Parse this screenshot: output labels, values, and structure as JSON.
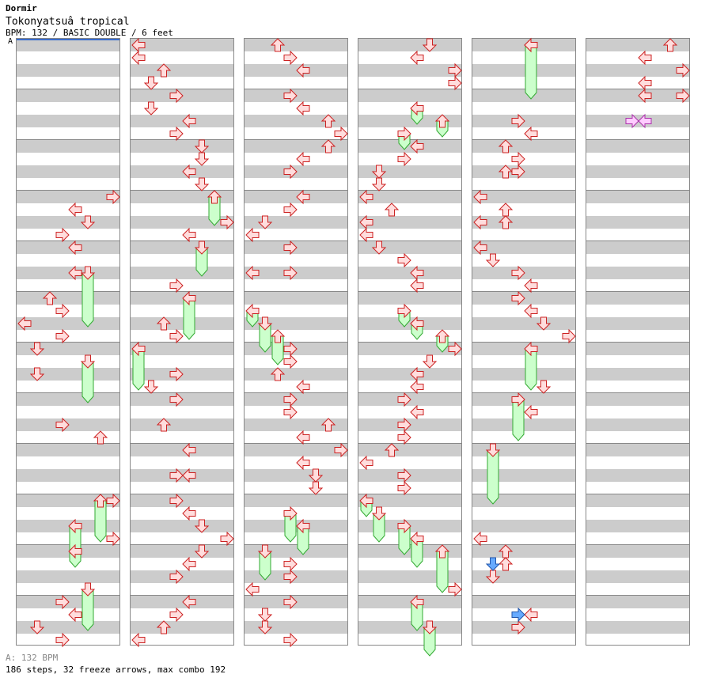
{
  "header": {
    "artist": "Dormir",
    "title": "Tokonyatsuâ  tropical",
    "info": "BPM: 132 / BASIC DOUBLE / 6 feet"
  },
  "bpm_marker": {
    "label": "A"
  },
  "footer": {
    "bpm_line": "A: 132 BPM",
    "stats_line": "186 steps, 32 freeze arrows, max combo 192"
  },
  "colors": {
    "arrow_fill": "#ffdddd",
    "arrow_stroke": "#cc2222",
    "freeze_fill": "#ccffcc",
    "freeze_stroke": "#33aa33",
    "blue_fill": "#66aaff",
    "blue_stroke": "#2255aa",
    "pink_fill": "#ffccff",
    "pink_stroke": "#aa33aa",
    "stripe": "#cccccc",
    "border": "#888888"
  },
  "chart_data": {
    "type": "stepchart",
    "columns": 6,
    "measures_per_column": 12,
    "lanes": [
      "left",
      "down",
      "up",
      "right",
      "left2",
      "down2",
      "up2",
      "right2"
    ],
    "freezes": [
      [
        0,
        5,
        18,
        22
      ],
      [
        0,
        5,
        25,
        28
      ],
      [
        0,
        6,
        36,
        39
      ],
      [
        0,
        4,
        38,
        41
      ],
      [
        0,
        5,
        43,
        46
      ],
      [
        1,
        6,
        12,
        14
      ],
      [
        1,
        5,
        16,
        18
      ],
      [
        1,
        4,
        20,
        23
      ],
      [
        1,
        0,
        24,
        27
      ],
      [
        2,
        0,
        21,
        22
      ],
      [
        2,
        1,
        22,
        24
      ],
      [
        2,
        2,
        23,
        25
      ],
      [
        2,
        3,
        37,
        39
      ],
      [
        2,
        4,
        38,
        40
      ],
      [
        2,
        1,
        40,
        42
      ],
      [
        3,
        4,
        5,
        6
      ],
      [
        3,
        3,
        7,
        8
      ],
      [
        3,
        6,
        6,
        7
      ],
      [
        3,
        3,
        21,
        22
      ],
      [
        3,
        4,
        22,
        23
      ],
      [
        3,
        6,
        23,
        24
      ],
      [
        3,
        0,
        36,
        37
      ],
      [
        3,
        1,
        37,
        39
      ],
      [
        3,
        3,
        38,
        40
      ],
      [
        3,
        4,
        39,
        41
      ],
      [
        3,
        6,
        40,
        43
      ],
      [
        3,
        4,
        44,
        46
      ],
      [
        3,
        5,
        46,
        48
      ],
      [
        4,
        4,
        0,
        4
      ],
      [
        4,
        4,
        24,
        27
      ],
      [
        4,
        3,
        28,
        31
      ],
      [
        4,
        1,
        32,
        36
      ]
    ],
    "arrows": [
      [
        0,
        7,
        12
      ],
      [
        0,
        4,
        13
      ],
      [
        0,
        5,
        14
      ],
      [
        0,
        3,
        15
      ],
      [
        0,
        4,
        16
      ],
      [
        0,
        4,
        18
      ],
      [
        0,
        2,
        20
      ],
      [
        0,
        3,
        21
      ],
      [
        0,
        0,
        22
      ],
      [
        0,
        3,
        23
      ],
      [
        0,
        1,
        24
      ],
      [
        0,
        1,
        26
      ],
      [
        0,
        3,
        30
      ],
      [
        0,
        6,
        31
      ],
      [
        0,
        7,
        36
      ],
      [
        0,
        7,
        39
      ],
      [
        0,
        4,
        40
      ],
      [
        0,
        3,
        44
      ],
      [
        0,
        4,
        45
      ],
      [
        0,
        1,
        46
      ],
      [
        0,
        3,
        47
      ],
      [
        1,
        0,
        0
      ],
      [
        1,
        0,
        1
      ],
      [
        1,
        2,
        2
      ],
      [
        1,
        1,
        3
      ],
      [
        1,
        3,
        4
      ],
      [
        1,
        1,
        5
      ],
      [
        1,
        4,
        6
      ],
      [
        1,
        3,
        7
      ],
      [
        1,
        5,
        8
      ],
      [
        1,
        5,
        9
      ],
      [
        1,
        4,
        10
      ],
      [
        1,
        5,
        11
      ],
      [
        1,
        7,
        14
      ],
      [
        1,
        4,
        15
      ],
      [
        1,
        3,
        19
      ],
      [
        1,
        2,
        22
      ],
      [
        1,
        3,
        23
      ],
      [
        1,
        3,
        26
      ],
      [
        1,
        1,
        27
      ],
      [
        1,
        3,
        28
      ],
      [
        1,
        2,
        30
      ],
      [
        1,
        4,
        32
      ],
      [
        1,
        3,
        34
      ],
      [
        1,
        4,
        34
      ],
      [
        1,
        3,
        36
      ],
      [
        1,
        4,
        37
      ],
      [
        1,
        5,
        38
      ],
      [
        1,
        7,
        39
      ],
      [
        1,
        5,
        40
      ],
      [
        1,
        4,
        41
      ],
      [
        1,
        3,
        42
      ],
      [
        1,
        4,
        44
      ],
      [
        1,
        3,
        45
      ],
      [
        1,
        2,
        46
      ],
      [
        1,
        0,
        47
      ],
      [
        2,
        2,
        0
      ],
      [
        2,
        3,
        1
      ],
      [
        2,
        4,
        2
      ],
      [
        2,
        3,
        4
      ],
      [
        2,
        4,
        5
      ],
      [
        2,
        6,
        6
      ],
      [
        2,
        7,
        7
      ],
      [
        2,
        6,
        8
      ],
      [
        2,
        4,
        9
      ],
      [
        2,
        3,
        10
      ],
      [
        2,
        4,
        12
      ],
      [
        2,
        3,
        13
      ],
      [
        2,
        1,
        14
      ],
      [
        2,
        0,
        15
      ],
      [
        2,
        3,
        16
      ],
      [
        2,
        0,
        18
      ],
      [
        2,
        3,
        18
      ],
      [
        2,
        3,
        24
      ],
      [
        2,
        3,
        25
      ],
      [
        2,
        2,
        26
      ],
      [
        2,
        4,
        27
      ],
      [
        2,
        3,
        28
      ],
      [
        2,
        3,
        29
      ],
      [
        2,
        6,
        30
      ],
      [
        2,
        4,
        31
      ],
      [
        2,
        7,
        32
      ],
      [
        2,
        4,
        33
      ],
      [
        2,
        5,
        34
      ],
      [
        2,
        5,
        35
      ],
      [
        2,
        3,
        41
      ],
      [
        2,
        3,
        42
      ],
      [
        2,
        0,
        43
      ],
      [
        2,
        3,
        44
      ],
      [
        2,
        1,
        45
      ],
      [
        2,
        1,
        46
      ],
      [
        2,
        3,
        47
      ],
      [
        3,
        5,
        0
      ],
      [
        3,
        4,
        1
      ],
      [
        3,
        7,
        2
      ],
      [
        3,
        7,
        3
      ],
      [
        3,
        4,
        8
      ],
      [
        3,
        3,
        9
      ],
      [
        3,
        1,
        10
      ],
      [
        3,
        1,
        11
      ],
      [
        3,
        0,
        12
      ],
      [
        3,
        2,
        13
      ],
      [
        3,
        0,
        14
      ],
      [
        3,
        0,
        15
      ],
      [
        3,
        1,
        16
      ],
      [
        3,
        3,
        17
      ],
      [
        3,
        4,
        18
      ],
      [
        3,
        4,
        19
      ],
      [
        3,
        7,
        24
      ],
      [
        3,
        5,
        25
      ],
      [
        3,
        4,
        26
      ],
      [
        3,
        4,
        27
      ],
      [
        3,
        3,
        28
      ],
      [
        3,
        4,
        29
      ],
      [
        3,
        3,
        30
      ],
      [
        3,
        3,
        31
      ],
      [
        3,
        2,
        32
      ],
      [
        3,
        0,
        33
      ],
      [
        3,
        3,
        34
      ],
      [
        3,
        3,
        35
      ],
      [
        3,
        7,
        43
      ]
    ],
    "arrows2": [
      [
        4,
        4,
        0
      ],
      [
        4,
        3,
        6
      ],
      [
        4,
        4,
        7
      ],
      [
        4,
        2,
        8
      ],
      [
        4,
        3,
        9
      ],
      [
        4,
        2,
        10
      ],
      [
        4,
        3,
        10
      ],
      [
        4,
        0,
        12
      ],
      [
        4,
        2,
        13
      ],
      [
        4,
        0,
        14
      ],
      [
        4,
        2,
        14
      ],
      [
        4,
        0,
        16
      ],
      [
        4,
        1,
        17
      ],
      [
        4,
        3,
        18
      ],
      [
        4,
        4,
        19
      ],
      [
        4,
        3,
        20
      ],
      [
        4,
        4,
        21
      ],
      [
        4,
        5,
        22
      ],
      [
        4,
        7,
        23
      ],
      [
        4,
        5,
        27
      ],
      [
        4,
        4,
        29
      ],
      [
        4,
        0,
        39
      ],
      [
        4,
        2,
        40
      ],
      [
        4,
        2,
        41
      ],
      [
        4,
        1,
        42
      ],
      [
        4,
        4,
        45
      ],
      [
        4,
        3,
        46
      ],
      [
        5,
        6,
        0
      ],
      [
        5,
        4,
        1
      ],
      [
        5,
        7,
        2
      ],
      [
        5,
        4,
        3
      ],
      [
        5,
        4,
        4
      ],
      [
        5,
        7,
        4
      ]
    ],
    "special": [
      [
        4,
        1,
        41,
        "blue"
      ],
      [
        4,
        3,
        45,
        "blue"
      ],
      [
        5,
        3,
        6,
        "pink"
      ],
      [
        5,
        4,
        6,
        "pink"
      ]
    ]
  }
}
